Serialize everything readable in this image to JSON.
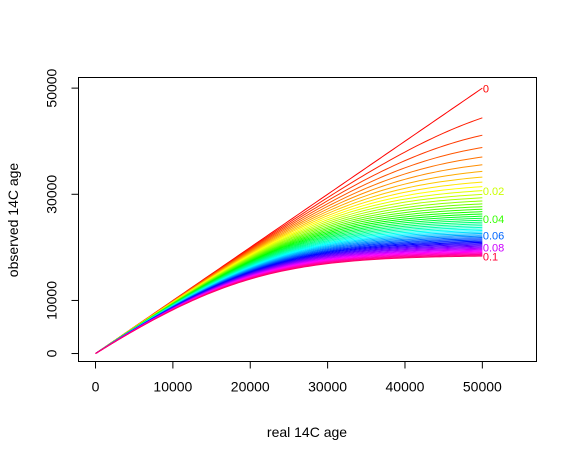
{
  "chart_data": {
    "type": "line",
    "title": "",
    "xlabel": "real 14C age",
    "ylabel": "observed 14C age",
    "xlim": [
      -2200,
      57000
    ],
    "ylim": [
      -1500,
      52000
    ],
    "x_ticks": [
      0,
      10000,
      20000,
      30000,
      40000,
      50000
    ],
    "x_tick_labels": [
      "0",
      "10000",
      "20000",
      "30000",
      "40000",
      "50000"
    ],
    "y_ticks": [
      0,
      10000,
      30000,
      50000
    ],
    "y_tick_labels": [
      "0",
      "10000",
      "30000",
      "50000"
    ],
    "grid": false,
    "legend": "none",
    "x_max": 50000,
    "series_description": "Family of curves for contamination fraction 0 to 0.1 in steps of 0.002 (51 curves)",
    "fraction_min": 0,
    "fraction_max": 0.1,
    "fraction_step": 0.002,
    "decay_mean_life": 8033,
    "curve_labels": [
      {
        "text": "0",
        "fraction": 0,
        "color": "#ff0000"
      },
      {
        "text": "0.02",
        "fraction": 0.02,
        "color": "#ccff00"
      },
      {
        "text": "0.04",
        "fraction": 0.04,
        "color": "#33ff00"
      },
      {
        "text": "0.06",
        "fraction": 0.06,
        "color": "#0066ff"
      },
      {
        "text": "0.08",
        "fraction": 0.08,
        "color": "#cc00ff"
      },
      {
        "text": "0.1",
        "fraction": 0.1,
        "color": "#ff0033"
      }
    ]
  }
}
